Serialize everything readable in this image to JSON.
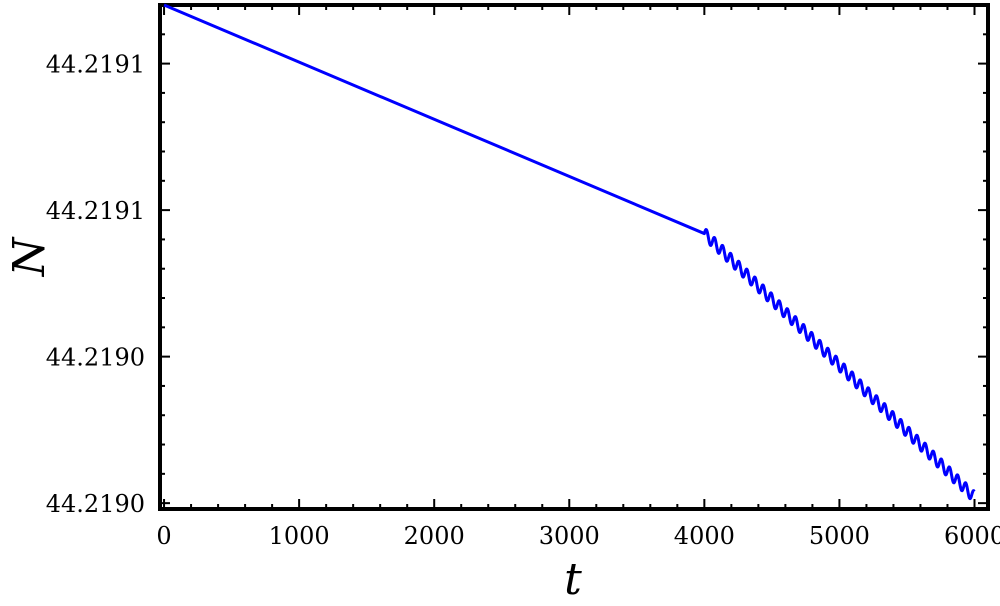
{
  "chart_data": {
    "type": "line",
    "xlabel": "t",
    "ylabel": "N",
    "xlim": [
      -30,
      6100
    ],
    "ylim": [
      44.21896,
      44.219132
    ],
    "x_ticks": [
      {
        "value": 0,
        "label": "0"
      },
      {
        "value": 1000,
        "label": "1000"
      },
      {
        "value": 2000,
        "label": "2000"
      },
      {
        "value": 3000,
        "label": "3000"
      },
      {
        "value": 4000,
        "label": "4000"
      },
      {
        "value": 5000,
        "label": "5000"
      },
      {
        "value": 6000,
        "label": "6000"
      }
    ],
    "y_ticks": [
      {
        "value": 44.219112,
        "label": "44.2191"
      },
      {
        "value": 44.219062,
        "label": "44.2191"
      },
      {
        "value": 44.219012,
        "label": "44.2190"
      },
      {
        "value": 44.218962,
        "label": "44.2190"
      }
    ],
    "grid": false,
    "frame": "box",
    "series": [
      {
        "color": "#0000ff",
        "segments": [
          {
            "kind": "linear",
            "x": [
              0,
              4000
            ],
            "y": [
              44.219132,
              44.219054
            ]
          },
          {
            "kind": "linear-with-oscillation",
            "x": [
              4000,
              6000
            ],
            "y": [
              44.219054,
              44.218964
            ],
            "oscillation_amplitude": 2e-06,
            "oscillation_period": 60
          }
        ]
      }
    ]
  }
}
